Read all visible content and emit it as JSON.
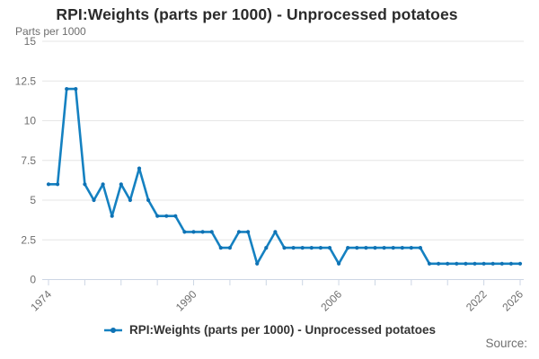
{
  "title": "RPI:Weights (parts per 1000) - Unprocessed potatoes",
  "y_axis_unit": "Parts per 1000",
  "source_label": "Source:",
  "legend": {
    "label": "RPI:Weights (parts per 1000) - Unprocessed potatoes"
  },
  "colors": {
    "line": "#1581c1",
    "marker": "#0f72b4",
    "grid": "#e6e6e6",
    "axis": "#ccd6e4",
    "tick_text": "#6e6e6e",
    "title_text": "#2b2b2b",
    "legend_text": "#333333",
    "source_text": "#707070"
  },
  "chart_data": {
    "type": "line",
    "title": "RPI:Weights (parts per 1000) - Unprocessed potatoes",
    "ylabel": "Parts per 1000",
    "xlabel": "",
    "ylim": [
      0,
      15
    ],
    "y_ticks": [
      0,
      2.5,
      5,
      7.5,
      10,
      12.5,
      15
    ],
    "x_range": [
      1974,
      2026
    ],
    "x_tick_step": 4,
    "x_labeled_ticks": [
      1974,
      1990,
      2006,
      2022,
      2026
    ],
    "grid": true,
    "markers": true,
    "legend_position": "bottom",
    "series_name": "RPI:Weights (parts per 1000) - Unprocessed potatoes",
    "years": [
      1974,
      1975,
      1976,
      1977,
      1978,
      1979,
      1980,
      1981,
      1982,
      1983,
      1984,
      1985,
      1986,
      1987,
      1988,
      1989,
      1990,
      1991,
      1992,
      1993,
      1994,
      1995,
      1996,
      1997,
      1998,
      1999,
      2000,
      2001,
      2002,
      2003,
      2004,
      2005,
      2006,
      2007,
      2008,
      2009,
      2010,
      2011,
      2012,
      2013,
      2014,
      2015,
      2016,
      2017,
      2018,
      2019,
      2020,
      2021,
      2022,
      2023,
      2024,
      2025,
      2026
    ],
    "values": [
      6,
      6,
      12,
      12,
      6,
      5,
      6,
      4,
      6,
      5,
      7,
      5,
      4,
      4,
      4,
      3,
      3,
      3,
      3,
      2,
      2,
      3,
      3,
      1,
      2,
      3,
      2,
      2,
      2,
      2,
      2,
      2,
      1,
      2,
      2,
      2,
      2,
      2,
      2,
      2,
      2,
      2,
      1,
      1,
      1,
      1,
      1,
      1,
      1,
      1,
      1,
      1,
      1
    ]
  }
}
